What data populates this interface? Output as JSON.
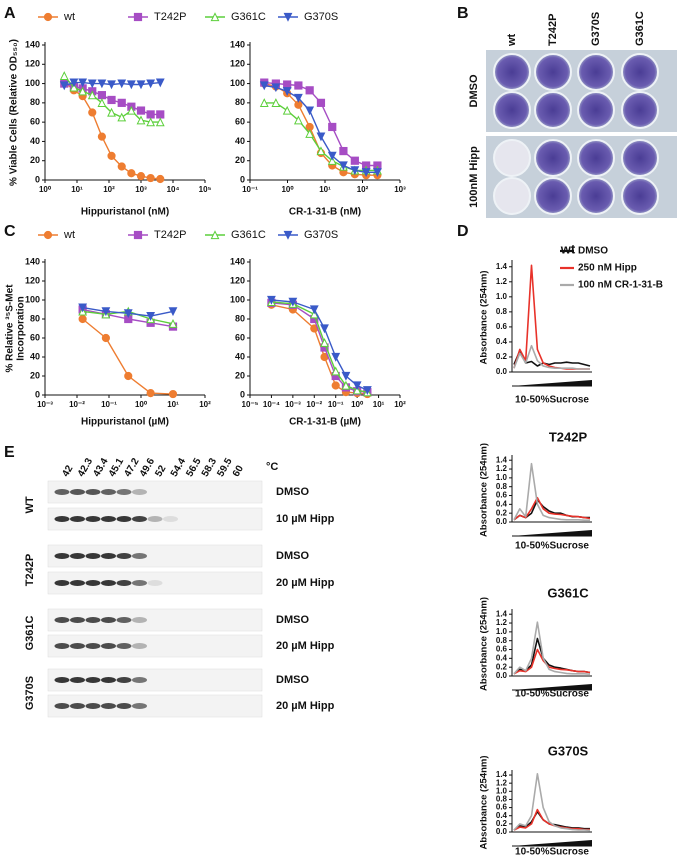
{
  "panel_labels": [
    "A",
    "B",
    "C",
    "D",
    "E"
  ],
  "chart_data": [
    {
      "type": "line",
      "ylabel": "% Viable Cells (Relative OD₅₅₀)",
      "xlabel": "Hippuristanol (nM)",
      "xscale": "log",
      "xlim": [
        1,
        100000
      ],
      "xticks": [
        {
          "value": 1,
          "label": "10⁰"
        },
        {
          "value": 10,
          "label": "10¹"
        },
        {
          "value": 100,
          "label": "10²"
        },
        {
          "value": 1000,
          "label": "10³"
        },
        {
          "value": 10000,
          "label": "10⁴"
        },
        {
          "value": 100000,
          "label": "10⁵"
        }
      ],
      "ylim": [
        0,
        140
      ],
      "yticks": [
        0,
        20,
        40,
        60,
        80,
        100,
        120,
        140
      ],
      "x": [
        4,
        8,
        15,
        30,
        60,
        120,
        250,
        500,
        1000,
        2000,
        4000
      ],
      "series": [
        {
          "name": "wt",
          "color": "#ee7d31",
          "marker": "circle",
          "values": [
            102,
            93,
            87,
            70,
            45,
            25,
            14,
            7,
            4,
            2,
            1
          ]
        },
        {
          "name": "T242P",
          "color": "#a64dc4",
          "marker": "square",
          "values": [
            100,
            97,
            95,
            92,
            88,
            83,
            80,
            76,
            72,
            68,
            68
          ]
        },
        {
          "name": "G361C",
          "color": "#5ccf3b",
          "marker": "triangle-up",
          "values": [
            108,
            96,
            92,
            88,
            80,
            70,
            65,
            72,
            62,
            60,
            60
          ]
        },
        {
          "name": "G370S",
          "color": "#3a5ac8",
          "marker": "triangle-down",
          "values": [
            98,
            101,
            101,
            100,
            100,
            99,
            100,
            99,
            99,
            100,
            101
          ]
        }
      ]
    },
    {
      "type": "line",
      "xlabel": "CR-1-31-B (nM)",
      "xscale": "log",
      "xlim": [
        0.1,
        1000
      ],
      "xticks": [
        {
          "value": 0.1,
          "label": "10⁻¹"
        },
        {
          "value": 1,
          "label": "10⁰"
        },
        {
          "value": 10,
          "label": "10¹"
        },
        {
          "value": 100,
          "label": "10²"
        },
        {
          "value": 1000,
          "label": "10³"
        }
      ],
      "ylim": [
        0,
        140
      ],
      "yticks": [
        0,
        20,
        40,
        60,
        80,
        100,
        120,
        140
      ],
      "x": [
        0.24,
        0.49,
        0.98,
        1.95,
        3.9,
        7.8,
        15.6,
        31,
        62.5,
        125,
        250
      ],
      "series": [
        {
          "color": "#ee7d31",
          "marker": "circle",
          "values": [
            100,
            97,
            90,
            78,
            55,
            28,
            15,
            8,
            6,
            5,
            5
          ]
        },
        {
          "color": "#a64dc4",
          "marker": "square",
          "values": [
            101,
            100,
            99,
            98,
            93,
            80,
            55,
            30,
            20,
            15,
            15
          ]
        },
        {
          "color": "#5ccf3b",
          "marker": "triangle-up",
          "values": [
            80,
            80,
            72,
            62,
            48,
            30,
            20,
            14,
            10,
            10,
            10
          ]
        },
        {
          "color": "#3a5ac8",
          "marker": "triangle-down",
          "values": [
            98,
            96,
            92,
            85,
            72,
            45,
            25,
            15,
            10,
            8,
            8
          ]
        }
      ]
    },
    {
      "type": "line",
      "ylabel": [
        "% Relative ³⁵S-Met",
        "Incorporation"
      ],
      "xlabel": "Hippuristanol (µM)",
      "xscale": "log",
      "xlim": [
        0.001,
        100
      ],
      "xticks": [
        {
          "value": 0.001,
          "label": "10⁻³"
        },
        {
          "value": 0.01,
          "label": "10⁻²"
        },
        {
          "value": 0.1,
          "label": "10⁻¹"
        },
        {
          "value": 1,
          "label": "10⁰"
        },
        {
          "value": 10,
          "label": "10¹"
        },
        {
          "value": 100,
          "label": "10²"
        }
      ],
      "ylim": [
        0,
        140
      ],
      "yticks": [
        0,
        20,
        40,
        60,
        80,
        100,
        120,
        140
      ],
      "x": [
        0.015,
        0.08,
        0.4,
        2,
        10
      ],
      "series": [
        {
          "name": "wt",
          "color": "#ee7d31",
          "marker": "circle",
          "values": [
            80,
            60,
            20,
            2,
            1
          ]
        },
        {
          "name": "T242P",
          "color": "#a64dc4",
          "marker": "square",
          "values": [
            90,
            85,
            80,
            76,
            72
          ]
        },
        {
          "name": "G361C",
          "color": "#5ccf3b",
          "marker": "triangle-up",
          "values": [
            88,
            85,
            88,
            80,
            75
          ]
        },
        {
          "name": "G370S",
          "color": "#3a5ac8",
          "marker": "triangle-down",
          "values": [
            92,
            88,
            86,
            83,
            88
          ]
        }
      ]
    },
    {
      "type": "line",
      "xlabel": "CR-1-31-B (µM)",
      "xscale": "log",
      "xlim": [
        1e-05,
        100
      ],
      "xticks": [
        {
          "value": 1e-05,
          "label": "10⁻⁵"
        },
        {
          "value": 0.0001,
          "label": "10⁻⁴"
        },
        {
          "value": 0.001,
          "label": "10⁻³"
        },
        {
          "value": 0.01,
          "label": "10⁻²"
        },
        {
          "value": 0.1,
          "label": "10⁻¹"
        },
        {
          "value": 1,
          "label": "10⁰"
        },
        {
          "value": 10,
          "label": "10¹"
        },
        {
          "value": 100,
          "label": "10²"
        }
      ],
      "ylim": [
        0,
        140
      ],
      "yticks": [
        0,
        20,
        40,
        60,
        80,
        100,
        120,
        140
      ],
      "x": [
        0.0001,
        0.001,
        0.01,
        0.03,
        0.1,
        0.3,
        1,
        3
      ],
      "series": [
        {
          "color": "#ee7d31",
          "marker": "circle",
          "values": [
            95,
            90,
            70,
            40,
            10,
            3,
            2,
            1
          ]
        },
        {
          "color": "#a64dc4",
          "marker": "square",
          "values": [
            97,
            95,
            80,
            50,
            20,
            8,
            4,
            3
          ]
        },
        {
          "color": "#5ccf3b",
          "marker": "triangle-up",
          "values": [
            98,
            96,
            85,
            55,
            25,
            10,
            5,
            3
          ]
        },
        {
          "color": "#3a5ac8",
          "marker": "triangle-down",
          "values": [
            100,
            98,
            90,
            70,
            40,
            20,
            10,
            5
          ]
        }
      ]
    },
    {
      "type": "line",
      "title": "wt",
      "ylabel": "Absorbance (254nm)",
      "xlabel": "10-50%Sucrose",
      "ylim": [
        0,
        1.45
      ],
      "yticks": [
        {
          "value": 0,
          "label": "0.0"
        },
        0.2,
        0.4,
        0.6,
        0.8,
        {
          "value": 1,
          "label": "1.0"
        },
        1.2,
        1.4
      ],
      "series": [
        {
          "name": "DMSO",
          "color": "#111111",
          "values": [
            0.1,
            0.28,
            0.12,
            0.14,
            0.08,
            0.12,
            0.1,
            0.12,
            0.12,
            0.13,
            0.12,
            0.12,
            0.1,
            0.08
          ]
        },
        {
          "name": "250 nM Hipp",
          "color": "#e8322a",
          "values": [
            0.05,
            0.3,
            0.15,
            1.42,
            0.3,
            0.12,
            0.08,
            0.06,
            0.05,
            0.04,
            0.04,
            0.04,
            0.04,
            0.04
          ]
        },
        {
          "name": "100 nM CR-1-31-B",
          "color": "#aaaaaa",
          "values": [
            0.05,
            0.25,
            0.12,
            0.35,
            0.15,
            0.08,
            0.06,
            0.05,
            0.05,
            0.05,
            0.05,
            0.04,
            0.04,
            0.04
          ]
        }
      ]
    },
    {
      "type": "line",
      "title": "T242P",
      "ylabel": "Absorbance (254nm)",
      "xlabel": "10-50%Sucrose",
      "ylim": [
        0,
        1.45
      ],
      "yticks": [
        {
          "value": 0,
          "label": "0.0"
        },
        0.2,
        0.4,
        0.6,
        0.8,
        {
          "value": 1,
          "label": "1.0"
        },
        1.2,
        1.4
      ],
      "series": [
        {
          "color": "#111111",
          "values": [
            0.05,
            0.15,
            0.1,
            0.2,
            0.5,
            0.35,
            0.25,
            0.2,
            0.2,
            0.15,
            0.12,
            0.12,
            0.1,
            0.1
          ]
        },
        {
          "color": "#e8322a",
          "values": [
            0.05,
            0.15,
            0.1,
            0.3,
            0.55,
            0.3,
            0.2,
            0.18,
            0.17,
            0.15,
            0.13,
            0.12,
            0.1,
            0.08
          ]
        },
        {
          "color": "#aaaaaa",
          "values": [
            0.05,
            0.3,
            0.12,
            1.32,
            0.4,
            0.15,
            0.1,
            0.08,
            0.06,
            0.05,
            0.05,
            0.05,
            0.04,
            0.04
          ]
        }
      ]
    },
    {
      "type": "line",
      "title": "G361C",
      "ylabel": "Absorbance (254nm)",
      "xlabel": "10-50%Sucrose",
      "ylim": [
        0,
        1.45
      ],
      "yticks": [
        {
          "value": 0,
          "label": "0.0"
        },
        0.2,
        0.4,
        0.6,
        0.8,
        {
          "value": 1,
          "label": "1.0"
        },
        1.2,
        1.4
      ],
      "series": [
        {
          "color": "#111111",
          "values": [
            0.05,
            0.15,
            0.12,
            0.25,
            0.85,
            0.4,
            0.25,
            0.2,
            0.18,
            0.15,
            0.12,
            0.1,
            0.1,
            0.08
          ]
        },
        {
          "color": "#e8322a",
          "values": [
            0.05,
            0.12,
            0.1,
            0.2,
            0.6,
            0.35,
            0.2,
            0.17,
            0.15,
            0.14,
            0.12,
            0.1,
            0.1,
            0.08
          ]
        },
        {
          "color": "#aaaaaa",
          "values": [
            0.05,
            0.2,
            0.12,
            0.4,
            1.22,
            0.4,
            0.15,
            0.1,
            0.08,
            0.06,
            0.05,
            0.05,
            0.05,
            0.04
          ]
        }
      ]
    },
    {
      "type": "line",
      "title": "G370S",
      "ylabel": "Absorbance (254nm)",
      "xlabel": "10-50%Sucrose",
      "ylim": [
        0,
        1.45
      ],
      "yticks": [
        {
          "value": 0,
          "label": "0.0"
        },
        0.2,
        0.4,
        0.6,
        0.8,
        {
          "value": 1,
          "label": "1.0"
        },
        1.2,
        1.4
      ],
      "series": [
        {
          "color": "#111111",
          "values": [
            0.05,
            0.15,
            0.12,
            0.25,
            0.5,
            0.3,
            0.2,
            0.18,
            0.15,
            0.12,
            0.1,
            0.1,
            0.08,
            0.08
          ]
        },
        {
          "color": "#e8322a",
          "values": [
            0.05,
            0.12,
            0.1,
            0.2,
            0.55,
            0.3,
            0.2,
            0.15,
            0.12,
            0.1,
            0.08,
            0.08,
            0.06,
            0.06
          ]
        },
        {
          "color": "#aaaaaa",
          "values": [
            0.05,
            0.2,
            0.15,
            0.4,
            1.43,
            0.6,
            0.25,
            0.15,
            0.1,
            0.08,
            0.06,
            0.05,
            0.05,
            0.04
          ]
        }
      ]
    }
  ],
  "panel_b": {
    "columns": [
      "wt",
      "T242P",
      "G370S",
      "G361C"
    ],
    "rows": [
      "DMSO",
      "100nM Hipp"
    ]
  },
  "panel_e": {
    "temperatures": [
      42,
      42.3,
      43.4,
      45.1,
      47.2,
      49.6,
      52,
      54.4,
      56.5,
      58.3,
      59.5,
      60
    ],
    "unit": "°C",
    "groups": [
      {
        "name": "WT",
        "conditions": [
          "DMSO",
          "10 µM Hipp"
        ]
      },
      {
        "name": "T242P",
        "conditions": [
          "DMSO",
          "20 µM Hipp"
        ]
      },
      {
        "name": "G361C",
        "conditions": [
          "DMSO",
          "20 µM Hipp"
        ]
      },
      {
        "name": "G370S",
        "conditions": [
          "DMSO",
          "20 µM Hipp"
        ]
      }
    ]
  }
}
